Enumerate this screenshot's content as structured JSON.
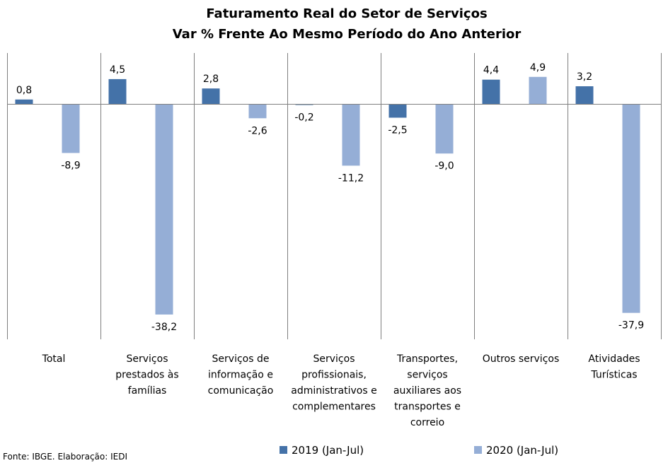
{
  "chart_data": {
    "type": "bar",
    "title": "Faturamento Real do Setor de Serviços",
    "subtitle": "Var % Frente Ao Mesmo Período do Ano Anterior",
    "categories": [
      "Total",
      "Serviços prestados às famílias",
      "Serviços de informação e comunicação",
      "Serviços profissionais, administrativos e complementares",
      "Transportes, serviços auxiliares aos transportes e correio",
      "Outros serviços",
      "Atividades Turísticas"
    ],
    "category_lines": [
      [
        "Total"
      ],
      [
        "Serviços",
        "prestados às",
        "famílias"
      ],
      [
        "Serviços de",
        "informação e",
        "comunicação"
      ],
      [
        "Serviços",
        "profissionais,",
        "administrativos e",
        "complementares"
      ],
      [
        "Transportes,",
        "serviços",
        "auxiliares aos",
        "transportes e",
        "correio"
      ],
      [
        "Outros serviços"
      ],
      [
        "Atividades",
        "Turísticas"
      ]
    ],
    "series": [
      {
        "name": "2019 (Jan-Jul)",
        "color": "#4472a8",
        "values": [
          0.8,
          4.5,
          2.8,
          -0.2,
          -2.5,
          4.4,
          3.2
        ],
        "labels": [
          "0,8",
          "4,5",
          "2,8",
          "-0,2",
          "-2,5",
          "4,4",
          "3,2"
        ]
      },
      {
        "name": "2020 (Jan-Jul)",
        "color": "#95aed6",
        "values": [
          -8.9,
          -38.2,
          -2.6,
          -11.2,
          -9.0,
          4.9,
          -37.9
        ],
        "labels": [
          "-8,9",
          "-38,2",
          "-2,6",
          "-11,2",
          "-9,0",
          "4,9",
          "-37,9"
        ]
      }
    ],
    "ylim": [
      -43,
      9
    ],
    "grid": false,
    "legend_position": "bottom",
    "source": "Fonte: IBGE. Elaboração: IEDI"
  }
}
